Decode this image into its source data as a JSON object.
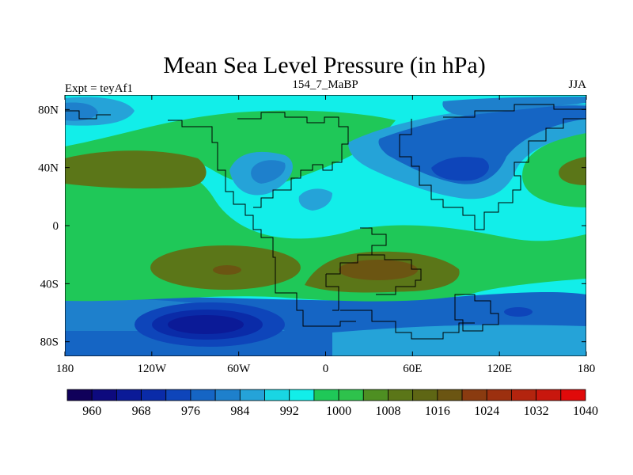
{
  "chart_data": {
    "type": "heatmap",
    "title": "Mean Sea Level Pressure (in hPa)",
    "left_string": "Expt = teyAf1",
    "center_string": "154_7_MaBP",
    "right_string": "JJA",
    "x_ticks": [
      {
        "value": -180,
        "label": "180"
      },
      {
        "value": -120,
        "label": "120W"
      },
      {
        "value": -60,
        "label": "60W"
      },
      {
        "value": 0,
        "label": "0"
      },
      {
        "value": 60,
        "label": "60E"
      },
      {
        "value": 120,
        "label": "120E"
      },
      {
        "value": 180,
        "label": "180"
      }
    ],
    "y_ticks": [
      {
        "value": 80,
        "label": "80N"
      },
      {
        "value": 40,
        "label": "40N"
      },
      {
        "value": 0,
        "label": "0"
      },
      {
        "value": -40,
        "label": "40S"
      },
      {
        "value": -80,
        "label": "80S"
      }
    ],
    "xlim": [
      -180,
      180
    ],
    "ylim": [
      -90,
      90
    ],
    "colorbar": {
      "colors": [
        "#10005a",
        "#0d0a7e",
        "#0b1a97",
        "#0a2ba8",
        "#0e45ba",
        "#1565c4",
        "#1e80cc",
        "#25a3d8",
        "#19d6e3",
        "#12eee9",
        "#1fc858",
        "#2ec24c",
        "#4e8f22",
        "#5b7618",
        "#5e6614",
        "#6b5512",
        "#8a3b10",
        "#9c300f",
        "#b3240e",
        "#c8170d",
        "#e00a0a"
      ],
      "label_values": [
        "960",
        "968",
        "976",
        "984",
        "992",
        "1000",
        "1008",
        "1016",
        "1024",
        "1032",
        "1040"
      ]
    },
    "field_colors": {
      "ocean_high": "#1fc858",
      "subtrop_high": "#5b7618",
      "core_high": "#6b5512",
      "mid": "#12eee9",
      "low1": "#25a3d8",
      "low2": "#1e80cc",
      "low3": "#1565c4",
      "low4": "#0e45ba",
      "low5": "#0a2ba8",
      "low6": "#0b1a97"
    }
  }
}
